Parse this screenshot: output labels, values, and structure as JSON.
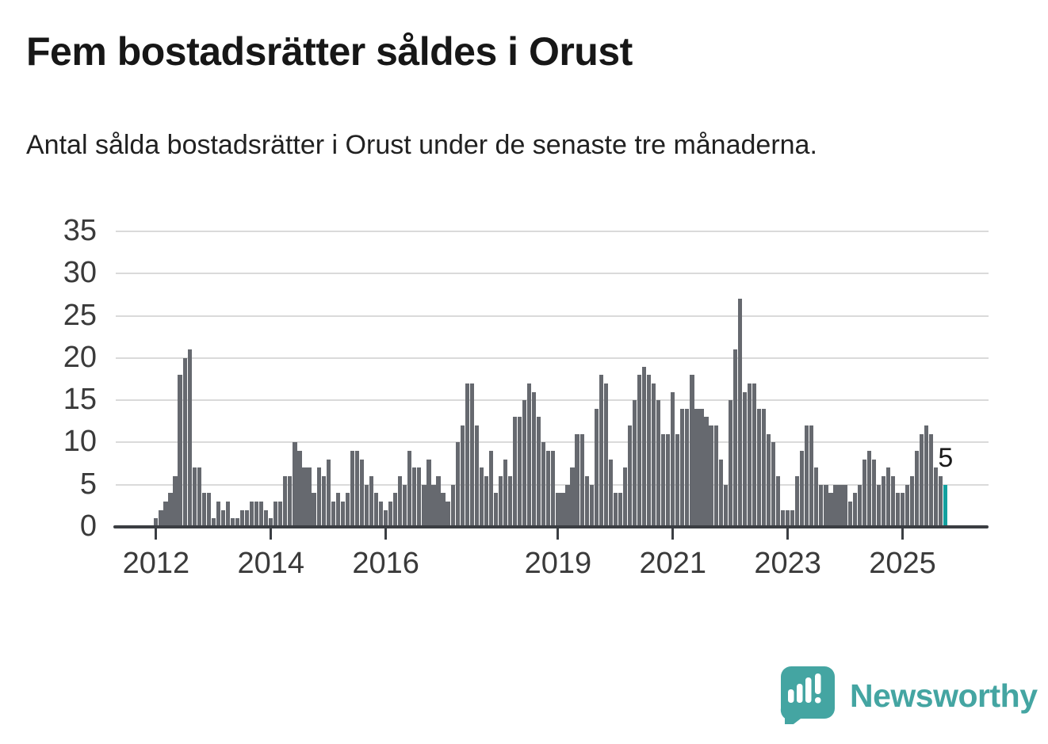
{
  "header": {
    "title": "Fem bostadsrätter såldes i Orust",
    "subtitle": "Antal sålda bostadsrätter i Orust under de senaste tre månaderna."
  },
  "branding": {
    "name": "Newsworthy",
    "icon": "bar-chart-speech-bubble-icon",
    "color": "#44a5a2"
  },
  "colors": {
    "bar": "#66696f",
    "highlight_bar": "#12a09e",
    "gridline": "#dadada",
    "axis": "#3b3e43",
    "text": "#3a3a3a"
  },
  "chart_data": {
    "type": "bar",
    "title": "Fem bostadsrätter såldes i Orust",
    "subtitle": "Antal sålda bostadsrätter i Orust under de senaste tre månaderna.",
    "unit": "sålda bostadsrätter per månad (rullande tre månader)",
    "ylim": [
      0,
      35
    ],
    "y_ticks": [
      0,
      5,
      10,
      15,
      20,
      25,
      30,
      35
    ],
    "grid": true,
    "legend": "none",
    "x_ticks": [
      {
        "label": "2012",
        "month_index": 0
      },
      {
        "label": "2014",
        "month_index": 24
      },
      {
        "label": "2016",
        "month_index": 48
      },
      {
        "label": "2019",
        "month_index": 84
      },
      {
        "label": "2021",
        "month_index": 108
      },
      {
        "label": "2023",
        "month_index": 132
      },
      {
        "label": "2025",
        "month_index": 156
      }
    ],
    "series": [
      {
        "year": 2012,
        "values": [
          1,
          2,
          3,
          4,
          6,
          18,
          20,
          21,
          7,
          7,
          4,
          4
        ]
      },
      {
        "year": 2013,
        "values": [
          1,
          3,
          2,
          3,
          1,
          1,
          2,
          2,
          3,
          3,
          3,
          2
        ]
      },
      {
        "year": 2014,
        "values": [
          1,
          3,
          3,
          6,
          6,
          10,
          9,
          7,
          7,
          4,
          7,
          6
        ]
      },
      {
        "year": 2015,
        "values": [
          8,
          3,
          4,
          3,
          4,
          9,
          9,
          8,
          5,
          6,
          4,
          3
        ]
      },
      {
        "year": 2016,
        "values": [
          2,
          3,
          4,
          6,
          5,
          9,
          7,
          7,
          5,
          8,
          5,
          6
        ]
      },
      {
        "year": 2017,
        "values": [
          4,
          3,
          5,
          10,
          12,
          17,
          17,
          12,
          7,
          6,
          9,
          4
        ]
      },
      {
        "year": 2018,
        "values": [
          6,
          8,
          6,
          13,
          13,
          15,
          17,
          16,
          13,
          10,
          9,
          9
        ]
      },
      {
        "year": 2019,
        "values": [
          4,
          4,
          5,
          7,
          11,
          11,
          6,
          5,
          14,
          18,
          17,
          8
        ]
      },
      {
        "year": 2020,
        "values": [
          4,
          4,
          7,
          12,
          15,
          18,
          19,
          18,
          17,
          15,
          11,
          11
        ]
      },
      {
        "year": 2021,
        "values": [
          16,
          11,
          14,
          14,
          18,
          14,
          14,
          13,
          12,
          12,
          8,
          5
        ]
      },
      {
        "year": 2022,
        "values": [
          15,
          21,
          27,
          16,
          17,
          17,
          14,
          14,
          11,
          10,
          6,
          2
        ]
      },
      {
        "year": 2023,
        "values": [
          2,
          2,
          6,
          9,
          12,
          12,
          7,
          5,
          5,
          4,
          5,
          5
        ]
      },
      {
        "year": 2024,
        "values": [
          5,
          3,
          4,
          5,
          8,
          9,
          8,
          5,
          6,
          7,
          6,
          4
        ]
      },
      {
        "year": 2025,
        "values": [
          4,
          5,
          6,
          9,
          11,
          12,
          11,
          7,
          6,
          5
        ]
      }
    ],
    "highlight": {
      "position": "last",
      "value": 5,
      "label": "5",
      "color": "#12a09e"
    }
  }
}
